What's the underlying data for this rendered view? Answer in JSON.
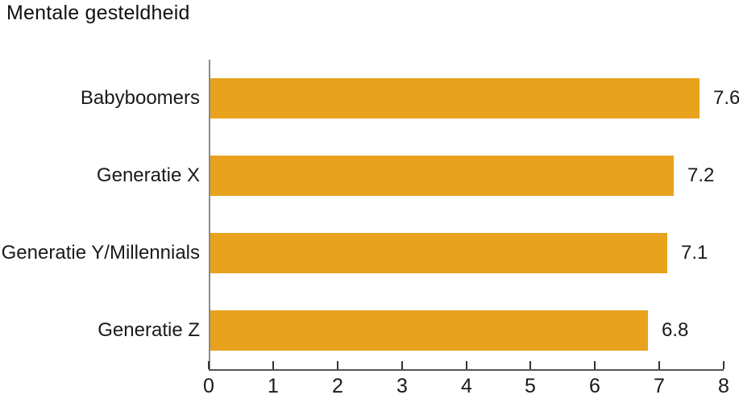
{
  "chart_data": {
    "type": "bar",
    "orientation": "horizontal",
    "title": "Mentale gesteldheid",
    "categories": [
      "Babyboomers",
      "Generatie X",
      "Generatie Y/Millennials",
      "Generatie Z"
    ],
    "values": [
      7.6,
      7.2,
      7.1,
      6.8
    ],
    "value_labels": [
      "7.6",
      "7.2",
      "7.1",
      "6.8"
    ],
    "xlabel": "",
    "ylabel": "",
    "xlim": [
      0,
      8
    ],
    "x_ticks": [
      0,
      1,
      2,
      3,
      4,
      5,
      6,
      7,
      8
    ],
    "grid": false,
    "legend": null,
    "bar_color": "#E8A21E",
    "y_axis_color": "#8a8a8a",
    "x_axis_color": "#555555",
    "tick_color": "#111111",
    "text_color": "#1a1a1a"
  }
}
